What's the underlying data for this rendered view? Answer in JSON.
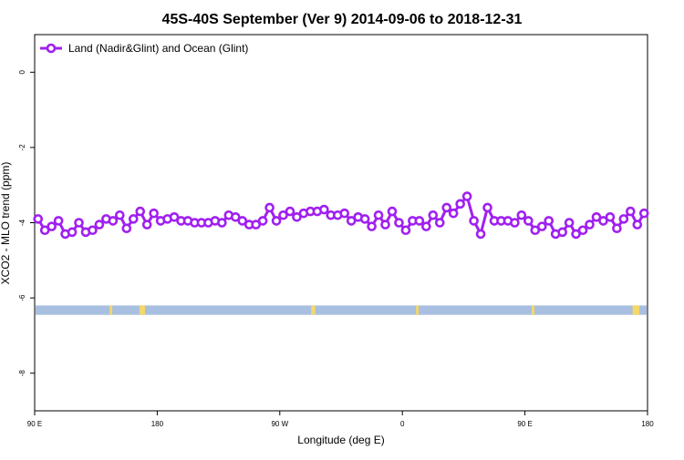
{
  "chart_data": {
    "type": "line",
    "title": "45S-40S September (Ver 9)   2014-09-06 to 2018-12-31",
    "xlabel": "Longitude (deg E)",
    "ylabel": "XCO2 - MLO trend (ppm)",
    "x_tick_positions": [
      90,
      180,
      270,
      360,
      450,
      540
    ],
    "x_tick_labels": [
      "90 E",
      "180",
      "90 W",
      "0",
      "90 E",
      "180"
    ],
    "xlim": [
      90,
      540
    ],
    "y_ticks": [
      0,
      -2,
      -4,
      -6,
      -8
    ],
    "y_tick_labels": [
      "0",
      "-2",
      "-4",
      "-6",
      "-8"
    ],
    "ylim": [
      -9.0,
      1.0
    ],
    "grid": false,
    "legend_position": "top-left",
    "series": [
      {
        "name": "Land (Nadir&Glint) and Ocean (Glint)",
        "color": "#a020f0",
        "marker": "open-circle",
        "x": [
          92.5,
          97.5,
          102.5,
          107.5,
          112.5,
          117.5,
          122.5,
          127.5,
          132.5,
          137.5,
          142.5,
          147.5,
          152.5,
          157.5,
          162.5,
          167.5,
          172.5,
          177.5,
          182.5,
          187.5,
          192.5,
          197.5,
          202.5,
          207.5,
          212.5,
          217.5,
          222.5,
          227.5,
          232.5,
          237.5,
          242.5,
          247.5,
          252.5,
          257.5,
          262.5,
          267.5,
          272.5,
          277.5,
          282.5,
          287.5,
          292.5,
          297.5,
          302.5,
          307.5,
          312.5,
          317.5,
          322.5,
          327.5,
          332.5,
          337.5,
          342.5,
          347.5,
          352.5,
          357.5,
          362.5,
          367.5,
          372.5,
          377.5,
          382.5,
          387.5,
          392.5,
          397.5,
          402.5,
          407.5,
          412.5,
          417.5,
          422.5,
          427.5,
          432.5,
          437.5,
          442.5,
          447.5,
          452.5,
          457.5,
          462.5,
          467.5,
          472.5,
          477.5,
          482.5,
          487.5,
          492.5,
          497.5,
          502.5,
          507.5,
          512.5,
          517.5,
          522.5,
          527.5,
          532.5,
          537.5
        ],
        "values": [
          -3.9,
          -4.2,
          -4.1,
          -3.95,
          -4.3,
          -4.25,
          -4.0,
          -4.25,
          -4.2,
          -4.05,
          -3.9,
          -3.95,
          -3.8,
          -4.15,
          -3.9,
          -3.7,
          -4.05,
          -3.75,
          -3.95,
          -3.9,
          -3.85,
          -3.95,
          -3.95,
          -4.0,
          -4.0,
          -4.0,
          -3.95,
          -4.0,
          -3.8,
          -3.85,
          -3.95,
          -4.05,
          -4.05,
          -3.95,
          -3.6,
          -3.95,
          -3.8,
          -3.7,
          -3.85,
          -3.75,
          -3.7,
          -3.7,
          -3.65,
          -3.8,
          -3.8,
          -3.75,
          -3.95,
          -3.85,
          -3.9,
          -4.1,
          -3.8,
          -4.05,
          -3.7,
          -4.0,
          -4.2,
          -3.95,
          -3.95,
          -4.1,
          -3.8,
          -4.0,
          -3.6,
          -3.75,
          -3.5,
          -3.3,
          -3.95,
          -4.3,
          -3.6,
          -3.95,
          -3.95,
          -3.95,
          -4.0,
          -3.8,
          -3.95,
          -4.2,
          -4.1,
          -3.95,
          -4.3,
          -4.25,
          -4.0,
          -4.3,
          -4.2,
          -4.05,
          -3.85,
          -3.95,
          -3.85,
          -4.15,
          -3.9,
          -3.7,
          -4.05,
          -3.75
        ]
      }
    ],
    "map_strip": {
      "y_top": -6.2,
      "y_bottom": -6.45,
      "ocean_color": "#a8bfe0",
      "land_color": "#f5d76a",
      "land_segments": [
        [
          145,
          147
        ],
        [
          167,
          171
        ],
        [
          293,
          296
        ],
        [
          370,
          372
        ],
        [
          455,
          457
        ],
        [
          529,
          534
        ]
      ]
    }
  }
}
